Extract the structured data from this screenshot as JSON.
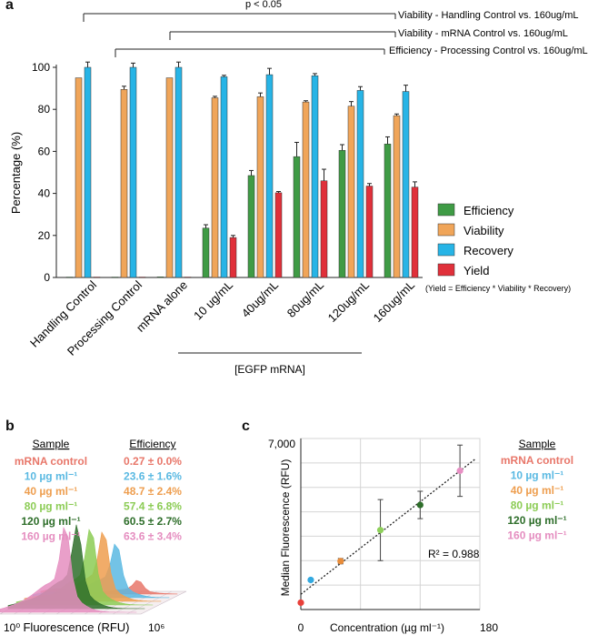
{
  "panel_labels": {
    "a": "a",
    "b": "b",
    "c": "c"
  },
  "panel_a": {
    "significance": "p < 0.05",
    "comparisons": [
      "Viability - Handling Control vs. 160ug/mL",
      "Viability - mRNA Control vs. 160ug/mL",
      "Efficiency - Processing Control vs. 160ug/mL"
    ],
    "group_label": "[EGFP mRNA]",
    "formula": "(Yield = Efficiency * Viability * Recovery)",
    "colors": {
      "Efficiency": "#3f9b45",
      "Viability": "#f0a559",
      "Recovery": "#27b4e6",
      "Yield": "#e0303a"
    }
  },
  "panel_b": {
    "header_sample": "Sample",
    "header_efficiency": "Efficiency",
    "rows": [
      {
        "sample": "mRNA control",
        "efficiency": "0.27 ± 0.0%",
        "color": "#e8776a"
      },
      {
        "sample": "10 µg ml⁻¹",
        "efficiency": "23.6 ± 1.6%",
        "color": "#5ab9e2"
      },
      {
        "sample": "40 µg ml⁻¹",
        "efficiency": "48.7 ± 2.4%",
        "color": "#ee9e4f"
      },
      {
        "sample": "80 µg ml⁻¹",
        "efficiency": "57.4 ± 6.8%",
        "color": "#8ccc55"
      },
      {
        "sample": "120 µg ml⁻¹",
        "efficiency": "60.5 ± 2.7%",
        "color": "#2e6e2a"
      },
      {
        "sample": "160 µg ml⁻¹",
        "efficiency": "63.6 ± 3.4%",
        "color": "#e58ec0"
      }
    ],
    "x_axis_label": "Fluorescence (RFU)",
    "x_min_label": "10⁰",
    "x_max_label": "10⁶"
  },
  "panel_c": {
    "r_squared": "R² = 0.988",
    "legend_title": "Sample",
    "point_colors": [
      "#e8403a",
      "#33a9e0",
      "#e88c3a",
      "#8ed05a",
      "#2e6e2a",
      "#e88fc4"
    ]
  },
  "chart_data": [
    {
      "type": "bar",
      "title": "",
      "xlabel": "",
      "ylabel": "Percentage (%)",
      "ylim": [
        0,
        100
      ],
      "yticks": [
        "0",
        "20",
        "40",
        "60",
        "80",
        "100"
      ],
      "categories": [
        "Handling Control",
        "Processing Control",
        "mRNA alone",
        "10 ug/mL",
        "40ug/mL",
        "80ug/mL",
        "120ug/mL",
        "160ug/mL"
      ],
      "legend_position": "right",
      "series": [
        {
          "name": "Efficiency",
          "values": [
            0.2,
            0.2,
            0.3,
            23.5,
            48.5,
            57.5,
            60.5,
            63.5
          ],
          "errors": [
            0,
            0,
            0,
            1.6,
            2.4,
            6.8,
            2.7,
            3.4
          ]
        },
        {
          "name": "Viability",
          "values": [
            95,
            89.5,
            95,
            85.5,
            86,
            83.5,
            81.5,
            77
          ],
          "errors": [
            0,
            1.5,
            0,
            0.7,
            1.8,
            0.6,
            2.2,
            0.8
          ]
        },
        {
          "name": "Recovery",
          "values": [
            100,
            100,
            100,
            95.5,
            96.5,
            96,
            89,
            88.5
          ],
          "errors": [
            2.5,
            2,
            2.5,
            0.7,
            3,
            1,
            1.8,
            3
          ]
        },
        {
          "name": "Yield",
          "values": [
            0.2,
            0.2,
            0.2,
            19,
            40.3,
            46,
            43.5,
            43
          ],
          "errors": [
            0,
            0,
            0,
            1,
            0.6,
            5.5,
            1.2,
            2.5
          ]
        }
      ]
    },
    {
      "type": "area",
      "xlabel": "Fluorescence (RFU)",
      "x_tick_labels": [
        "10⁰",
        "10⁶"
      ],
      "series": [
        {
          "name": "160 µg ml⁻¹",
          "efficiency": "63.6 ± 3.4%"
        },
        {
          "name": "120 µg ml⁻¹",
          "efficiency": "60.5 ± 2.7%"
        },
        {
          "name": "80 µg ml⁻¹",
          "efficiency": "57.4 ± 6.8%"
        },
        {
          "name": "40 µg ml⁻¹",
          "efficiency": "48.7 ± 2.4%"
        },
        {
          "name": "10 µg ml⁻¹",
          "efficiency": "23.6 ± 1.6%"
        },
        {
          "name": "mRNA control",
          "efficiency": "0.27 ± 0.0%"
        }
      ]
    },
    {
      "type": "scatter",
      "xlabel": "Concentration (µg ml⁻¹)",
      "ylabel": "Median Fluorescence (RFU)",
      "xlim": [
        0,
        180
      ],
      "ylim": [
        0,
        7000
      ],
      "x_tick_labels": [
        "0",
        "180"
      ],
      "y_tick_labels": [
        "7,000"
      ],
      "grid": true,
      "trendline": "linear",
      "annotation": "R² = 0.988",
      "series": [
        {
          "name": "mRNA control",
          "x": 0,
          "y": 280,
          "error": 0
        },
        {
          "name": "10 µg ml⁻¹",
          "x": 10,
          "y": 1210,
          "error": 60
        },
        {
          "name": "40 µg ml⁻¹",
          "x": 40,
          "y": 1980,
          "error": 110
        },
        {
          "name": "80 µg ml⁻¹",
          "x": 80,
          "y": 3250,
          "error": 1250
        },
        {
          "name": "120 µg ml⁻¹",
          "x": 120,
          "y": 4280,
          "error": 560
        },
        {
          "name": "160 µg ml⁻¹",
          "x": 160,
          "y": 5680,
          "error": 1050
        }
      ]
    }
  ]
}
